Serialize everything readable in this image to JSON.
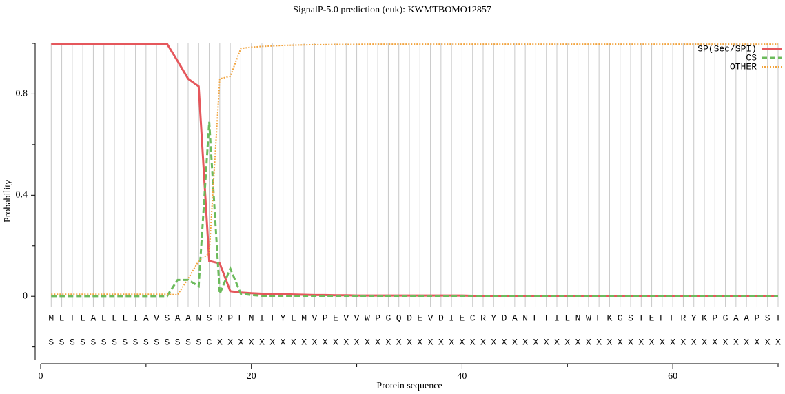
{
  "chart_data": {
    "type": "line",
    "title": "SignalP-5.0 prediction (euk):  KWMTBOMO12857",
    "xlabel": "Protein sequence",
    "ylabel": "Probability",
    "x": [
      1,
      2,
      3,
      4,
      5,
      6,
      7,
      8,
      9,
      10,
      11,
      12,
      13,
      14,
      15,
      16,
      17,
      18,
      19,
      20,
      21,
      22,
      23,
      24,
      25,
      26,
      27,
      28,
      29,
      30,
      31,
      32,
      33,
      34,
      35,
      36,
      37,
      38,
      39,
      40,
      41,
      42,
      43,
      44,
      45,
      46,
      47,
      48,
      49,
      50,
      51,
      52,
      53,
      54,
      55,
      56,
      57,
      58,
      59,
      60,
      61,
      62,
      63,
      64,
      65,
      66,
      67,
      68,
      69,
      70
    ],
    "sequence": [
      "M",
      "L",
      "T",
      "L",
      "A",
      "L",
      "L",
      "L",
      "I",
      "A",
      "V",
      "S",
      "A",
      "A",
      "N",
      "S",
      "R",
      "P",
      "F",
      "N",
      "I",
      "T",
      "Y",
      "L",
      "M",
      "V",
      "P",
      "E",
      "V",
      "V",
      "W",
      "P",
      "G",
      "Q",
      "D",
      "E",
      "V",
      "D",
      "I",
      "E",
      "C",
      "R",
      "Y",
      "D",
      "A",
      "N",
      "F",
      "T",
      "I",
      "L",
      "N",
      "W",
      "F",
      "K",
      "G",
      "S",
      "T",
      "E",
      "F",
      "F",
      "R",
      "Y",
      "K",
      "P",
      "G",
      "A",
      "A",
      "P",
      "S",
      "T"
    ],
    "labels": [
      "S",
      "S",
      "S",
      "S",
      "S",
      "S",
      "S",
      "S",
      "S",
      "S",
      "S",
      "S",
      "S",
      "S",
      "S",
      "C",
      "X",
      "X",
      "X",
      "X",
      "X",
      "X",
      "X",
      "X",
      "X",
      "X",
      "X",
      "X",
      "X",
      "X",
      "X",
      "X",
      "X",
      "X",
      "X",
      "X",
      "X",
      "X",
      "X",
      "X",
      "X",
      "X",
      "X",
      "X",
      "X",
      "X",
      "X",
      "X",
      "X",
      "X",
      "X",
      "X",
      "X",
      "X",
      "X",
      "X",
      "X",
      "X",
      "X",
      "X",
      "X",
      "X",
      "X",
      "X",
      "X",
      "X",
      "X",
      "X",
      "X",
      "X"
    ],
    "series": [
      {
        "name": "SP(Sec/SPI)",
        "color": "#e5575c",
        "style": "solid",
        "values": [
          0.998,
          0.998,
          0.998,
          0.998,
          0.998,
          0.998,
          0.998,
          0.998,
          0.998,
          0.998,
          0.998,
          0.998,
          0.93,
          0.86,
          0.83,
          0.14,
          0.13,
          0.02,
          0.015,
          0.012,
          0.01,
          0.009,
          0.008,
          0.007,
          0.006,
          0.005,
          0.005,
          0.004,
          0.004,
          0.003,
          0.003,
          0.003,
          0.003,
          0.003,
          0.003,
          0.003,
          0.003,
          0.003,
          0.003,
          0.003,
          0.002,
          0.002,
          0.002,
          0.002,
          0.002,
          0.002,
          0.002,
          0.002,
          0.002,
          0.002,
          0.002,
          0.002,
          0.002,
          0.002,
          0.002,
          0.002,
          0.002,
          0.002,
          0.002,
          0.002,
          0.002,
          0.002,
          0.002,
          0.002,
          0.002,
          0.002,
          0.002,
          0.002,
          0.002,
          0.002
        ]
      },
      {
        "name": "CS",
        "color": "#6cbb5c",
        "style": "dashed",
        "values": [
          0.001,
          0.001,
          0.001,
          0.001,
          0.001,
          0.001,
          0.001,
          0.001,
          0.001,
          0.001,
          0.001,
          0.001,
          0.065,
          0.065,
          0.04,
          0.69,
          0.01,
          0.11,
          0.01,
          0.005,
          0.002,
          0.002,
          0.002,
          0.002,
          0.002,
          0.002,
          0.002,
          0.002,
          0.002,
          0.002,
          0.002,
          0.002,
          0.002,
          0.002,
          0.002,
          0.002,
          0.002,
          0.002,
          0.002,
          0.002,
          0.002,
          0.002,
          0.002,
          0.002,
          0.002,
          0.002,
          0.002,
          0.002,
          0.002,
          0.002,
          0.002,
          0.002,
          0.002,
          0.002,
          0.002,
          0.002,
          0.002,
          0.002,
          0.002,
          0.002,
          0.002,
          0.002,
          0.002,
          0.002,
          0.002,
          0.002,
          0.002,
          0.002,
          0.002,
          0.002
        ]
      },
      {
        "name": "OTHER",
        "color": "#f2a33c",
        "style": "dotted",
        "values": [
          0.008,
          0.008,
          0.008,
          0.008,
          0.008,
          0.008,
          0.008,
          0.008,
          0.008,
          0.008,
          0.008,
          0.008,
          0.006,
          0.07,
          0.14,
          0.17,
          0.86,
          0.87,
          0.98,
          0.985,
          0.988,
          0.99,
          0.992,
          0.993,
          0.994,
          0.995,
          0.995,
          0.996,
          0.996,
          0.996,
          0.997,
          0.997,
          0.997,
          0.997,
          0.997,
          0.997,
          0.997,
          0.997,
          0.997,
          0.997,
          0.997,
          0.997,
          0.997,
          0.997,
          0.997,
          0.997,
          0.997,
          0.997,
          0.997,
          0.997,
          0.997,
          0.997,
          0.997,
          0.997,
          0.997,
          0.997,
          0.997,
          0.997,
          0.997,
          0.997,
          0.997,
          0.997,
          0.997,
          0.997,
          0.997,
          0.997,
          0.997,
          0.997,
          0.997,
          0.997
        ]
      }
    ],
    "xlim": [
      0,
      70
    ],
    "xticks": [
      0,
      20,
      40,
      60
    ],
    "xminor": [
      10,
      30,
      50,
      70
    ],
    "ylim": [
      -0.25,
      1.0
    ],
    "yticks": [
      0,
      0.4,
      0.8
    ],
    "yminor": [
      -0.2,
      0.2,
      0.6,
      1.0
    ],
    "grid": true,
    "legend": "upper right"
  }
}
